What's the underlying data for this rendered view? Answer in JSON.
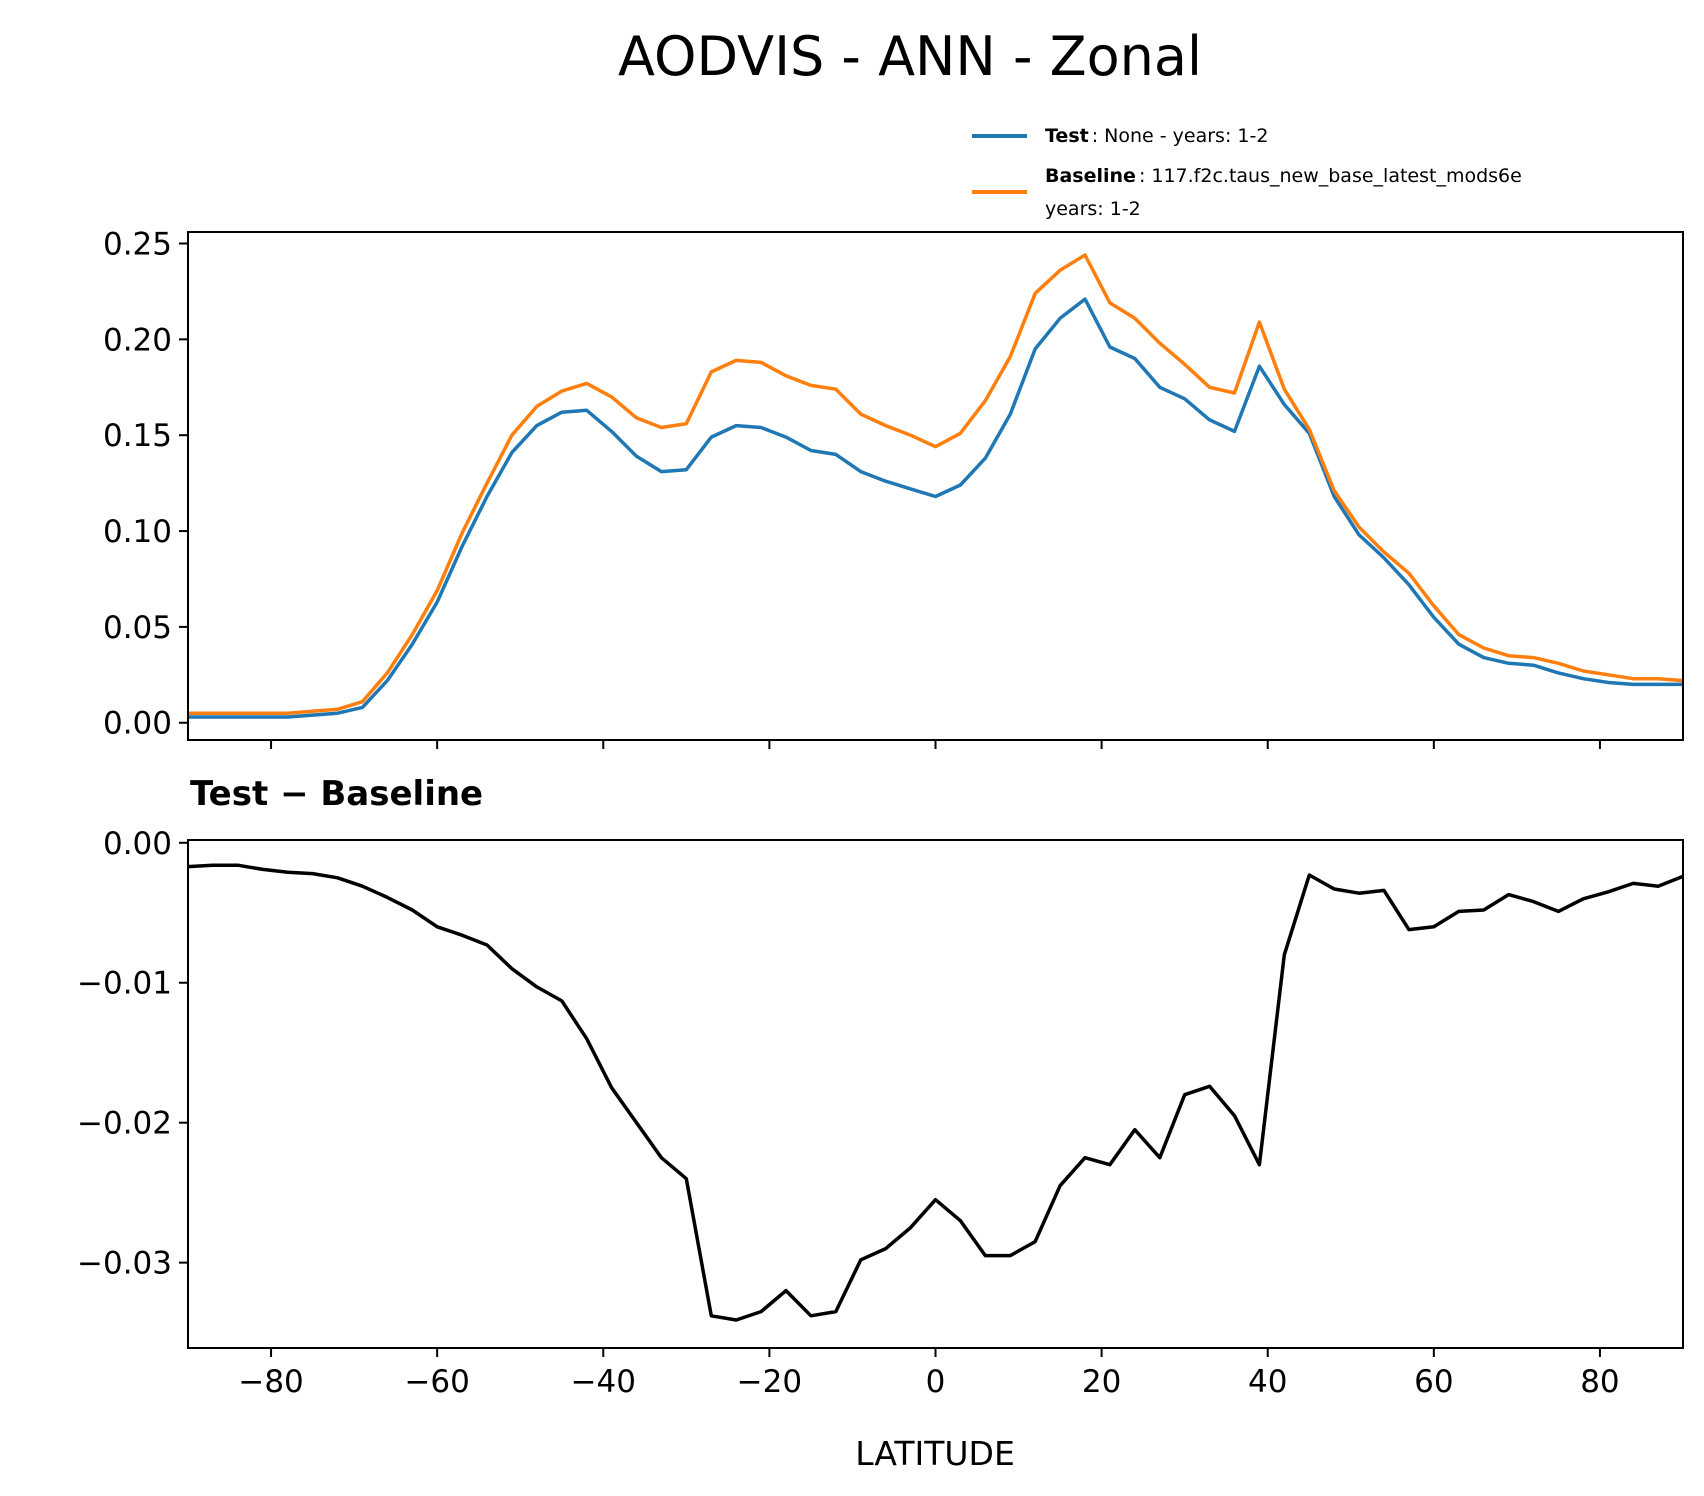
{
  "chart_data": [
    {
      "type": "line",
      "title": "AODVIS - ANN - Zonal",
      "x": [
        -90,
        -87,
        -84,
        -81,
        -78,
        -75,
        -72,
        -69,
        -66,
        -63,
        -60,
        -57,
        -54,
        -51,
        -48,
        -45,
        -42,
        -39,
        -36,
        -33,
        -30,
        -27,
        -24,
        -21,
        -18,
        -15,
        -12,
        -9,
        -6,
        -3,
        0,
        3,
        6,
        9,
        12,
        15,
        18,
        21,
        24,
        27,
        30,
        33,
        36,
        39,
        42,
        45,
        48,
        51,
        54,
        57,
        60,
        63,
        66,
        69,
        72,
        75,
        78,
        81,
        84,
        87,
        90
      ],
      "series": [
        {
          "name": "Test",
          "detail": [
            ": None - years: 1-2"
          ],
          "color": "#1f77b4",
          "values": [
            0.003,
            0.003,
            0.003,
            0.003,
            0.003,
            0.004,
            0.005,
            0.008,
            0.022,
            0.041,
            0.063,
            0.092,
            0.118,
            0.141,
            0.155,
            0.162,
            0.163,
            0.152,
            0.139,
            0.131,
            0.132,
            0.149,
            0.155,
            0.154,
            0.149,
            0.142,
            0.14,
            0.131,
            0.126,
            0.122,
            0.118,
            0.124,
            0.138,
            0.161,
            0.195,
            0.211,
            0.221,
            0.196,
            0.19,
            0.175,
            0.169,
            0.158,
            0.152,
            0.186,
            0.166,
            0.151,
            0.118,
            0.098,
            0.086,
            0.072,
            0.055,
            0.041,
            0.034,
            0.031,
            0.03,
            0.026,
            0.023,
            0.021,
            0.02,
            0.02,
            0.02
          ]
        },
        {
          "name": "Baseline",
          "detail": [
            ": 117.f2c.taus_new_base_latest_mods6e",
            "years: 1-2"
          ],
          "color": "#ff7f0e",
          "values": [
            0.005,
            0.005,
            0.005,
            0.005,
            0.005,
            0.006,
            0.007,
            0.011,
            0.026,
            0.046,
            0.069,
            0.099,
            0.125,
            0.15,
            0.165,
            0.173,
            0.177,
            0.17,
            0.159,
            0.154,
            0.156,
            0.183,
            0.189,
            0.188,
            0.181,
            0.176,
            0.174,
            0.161,
            0.155,
            0.15,
            0.144,
            0.151,
            0.168,
            0.191,
            0.224,
            0.236,
            0.244,
            0.219,
            0.211,
            0.198,
            0.187,
            0.175,
            0.172,
            0.209,
            0.174,
            0.153,
            0.121,
            0.102,
            0.089,
            0.078,
            0.061,
            0.046,
            0.039,
            0.035,
            0.034,
            0.031,
            0.027,
            0.025,
            0.023,
            0.023,
            0.022
          ]
        }
      ],
      "xlim": [
        -90,
        90
      ],
      "ylim": [
        -0.009,
        0.256
      ],
      "yticks": [
        {
          "value": 0,
          "label": "0.00"
        },
        {
          "value": 0.05,
          "label": "0.05"
        },
        {
          "value": 0.1,
          "label": "0.10"
        },
        {
          "value": 0.15,
          "label": "0.15"
        },
        {
          "value": 0.2,
          "label": "0.20"
        },
        {
          "value": 0.25,
          "label": "0.25"
        }
      ],
      "legend": "upper right"
    },
    {
      "type": "line",
      "title": "Test − Baseline",
      "xlabel": "LATITUDE",
      "x": [
        -90,
        -87,
        -84,
        -81,
        -78,
        -75,
        -72,
        -69,
        -66,
        -63,
        -60,
        -57,
        -54,
        -51,
        -48,
        -45,
        -42,
        -39,
        -36,
        -33,
        -30,
        -27,
        -24,
        -21,
        -18,
        -15,
        -12,
        -9,
        -6,
        -3,
        0,
        3,
        6,
        9,
        12,
        15,
        18,
        21,
        24,
        27,
        30,
        33,
        36,
        39,
        42,
        45,
        48,
        51,
        54,
        57,
        60,
        63,
        66,
        69,
        72,
        75,
        78,
        81,
        84,
        87,
        90
      ],
      "series": [
        {
          "color": "#000000",
          "values": [
            -0.0017,
            -0.0016,
            -0.0016,
            -0.0019,
            -0.0021,
            -0.0022,
            -0.0025,
            -0.0031,
            -0.0039,
            -0.0048,
            -0.006,
            -0.0066,
            -0.0073,
            -0.009,
            -0.0103,
            -0.0113,
            -0.014,
            -0.0175,
            -0.02,
            -0.0225,
            -0.024,
            -0.0338,
            -0.0341,
            -0.0335,
            -0.032,
            -0.0338,
            -0.0335,
            -0.0298,
            -0.029,
            -0.0275,
            -0.0255,
            -0.027,
            -0.0295,
            -0.0295,
            -0.0285,
            -0.0245,
            -0.0225,
            -0.023,
            -0.0205,
            -0.0225,
            -0.018,
            -0.0174,
            -0.0195,
            -0.023,
            -0.008,
            -0.0023,
            -0.0033,
            -0.0036,
            -0.0034,
            -0.0062,
            -0.006,
            -0.0049,
            -0.0048,
            -0.0037,
            -0.0042,
            -0.0049,
            -0.004,
            -0.0035,
            -0.0029,
            -0.0031,
            -0.0024
          ]
        }
      ],
      "xlim": [
        -90,
        90
      ],
      "ylim": [
        -0.0361,
        0.0002
      ],
      "xticks": [
        {
          "value": -80,
          "label": "−80"
        },
        {
          "value": -60,
          "label": "−60"
        },
        {
          "value": -40,
          "label": "−40"
        },
        {
          "value": -20,
          "label": "−20"
        },
        0,
        20,
        40,
        60,
        80
      ],
      "yticks": [
        {
          "value": -0.03,
          "label": "−0.03"
        },
        {
          "value": -0.02,
          "label": "−0.02"
        },
        {
          "value": -0.01,
          "label": "−0.01"
        },
        {
          "value": 0,
          "label": "0.00"
        }
      ]
    }
  ]
}
